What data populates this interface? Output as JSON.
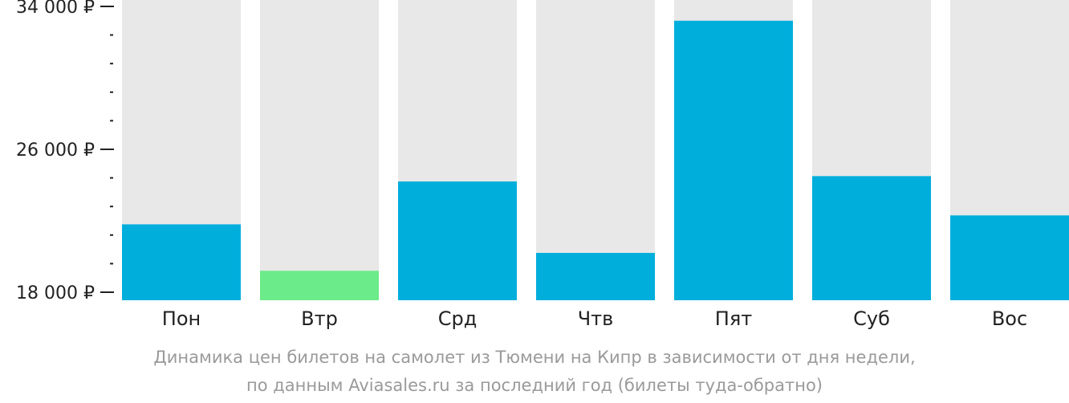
{
  "chart_data": {
    "type": "bar",
    "categories": [
      "Пон",
      "Втр",
      "Срд",
      "Чтв",
      "Пят",
      "Суб",
      "Вос"
    ],
    "values": [
      21800,
      19200,
      24200,
      20200,
      33200,
      24500,
      22300
    ],
    "ylim": [
      18000,
      34000
    ],
    "y_ticks": [
      {
        "value": 34000,
        "label": "34 000 ₽"
      },
      {
        "value": 26000,
        "label": "26 000 ₽"
      },
      {
        "value": 18000,
        "label": "18 000 ₽"
      }
    ],
    "y_minor_tick_step": 1600,
    "grid": false,
    "legend": "none",
    "colors": {
      "bar": "#00AEDC",
      "bar_min": "#6BEB8A",
      "background_bar": "#E8E8E8",
      "axis": "#222222"
    },
    "highlight_index": 1
  },
  "caption": {
    "line1": "Динамика цен билетов на самолет из Тюмени на Кипр в зависимости от дня недели,",
    "line2": "по данным Aviasales.ru за последний год (билеты туда-обратно)"
  }
}
